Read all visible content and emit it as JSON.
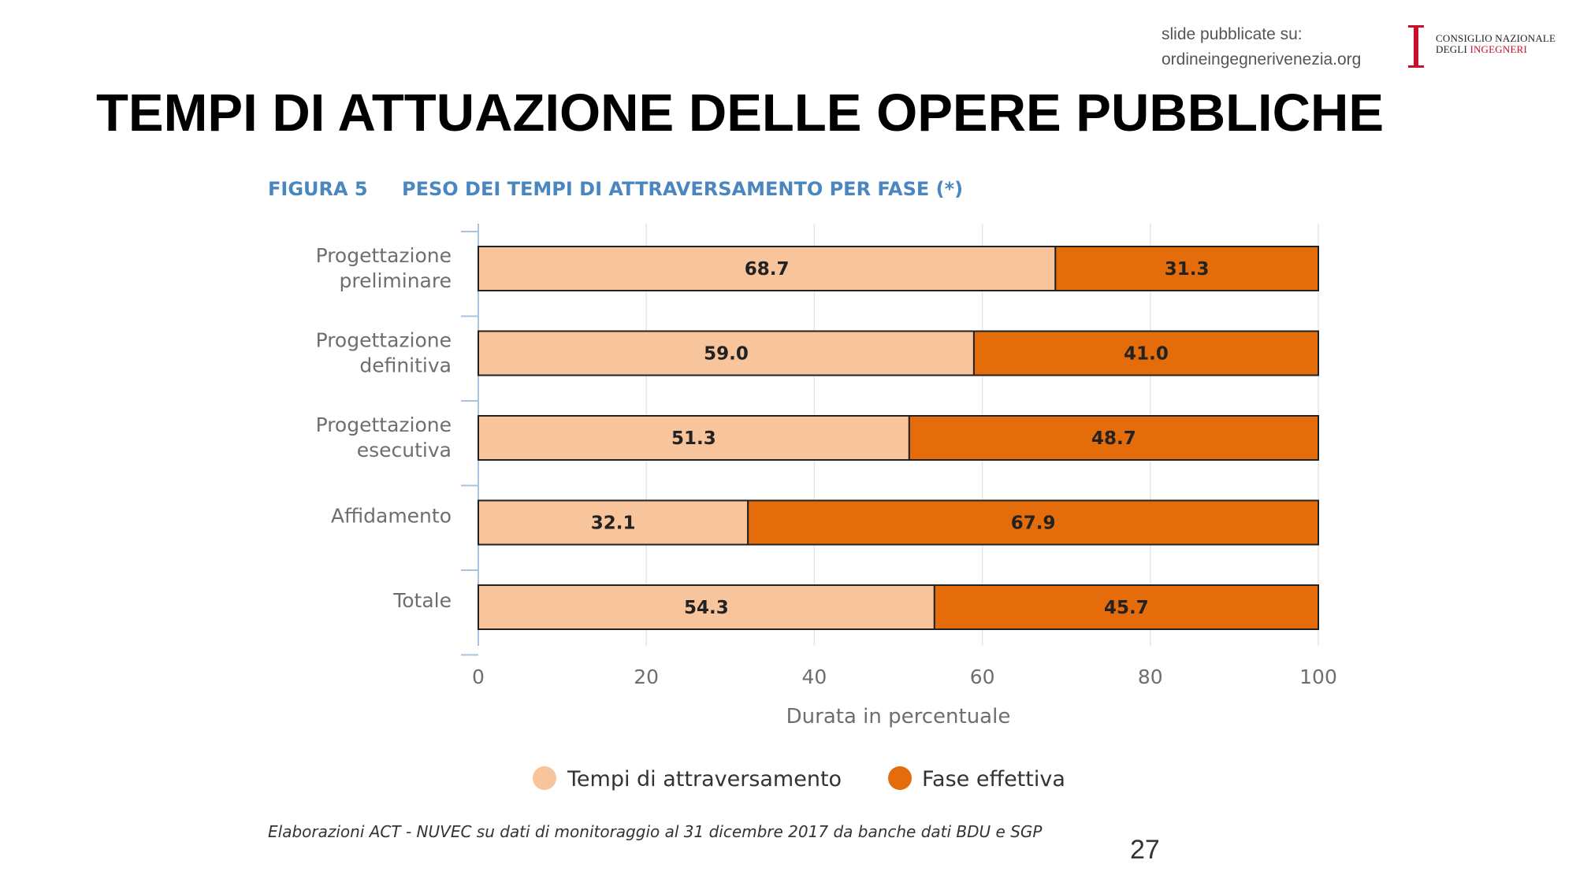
{
  "header": {
    "source_line1": "slide pubblicate su:",
    "source_line2": "ordineingegnerivenezia.org",
    "logo_line1": "CONSIGLIO NAZIONALE",
    "logo_line2a": "DEGLI ",
    "logo_line2b": "INGEGNERI",
    "logo_red": "#c8102e"
  },
  "page_title": "TEMPI DI ATTUAZIONE DELLE OPERE PUBBLICHE",
  "figure": {
    "number": "FIGURA 5",
    "title": "PESO DEI TEMPI DI ATTRAVERSAMENTO PER FASE (*)",
    "title_color": "#4a86c0"
  },
  "chart_data": {
    "type": "bar",
    "orientation": "horizontal",
    "stacked": true,
    "categories": [
      [
        "Progettazione",
        "preliminare"
      ],
      [
        "Progettazione",
        "definitiva"
      ],
      [
        "Progettazione",
        "esecutiva"
      ],
      [
        "Affidamento"
      ],
      [
        "Totale"
      ]
    ],
    "series": [
      {
        "name": "Tempi di attraversamento",
        "color": "#f8c49b",
        "values": [
          68.7,
          59.0,
          51.3,
          32.1,
          54.3
        ]
      },
      {
        "name": "Fase effettiva",
        "color": "#e46c0a",
        "values": [
          31.3,
          41.0,
          48.7,
          67.9,
          45.7
        ]
      }
    ],
    "xlabel": "Durata in percentuale",
    "xlim": [
      0,
      100
    ],
    "xticks": [
      0,
      20,
      40,
      60,
      80,
      100
    ],
    "grid": true,
    "legend": "bottom"
  },
  "footer": {
    "note": "Elaborazioni ACT - NUVEC su dati di monitoraggio al 31 dicembre 2017 da banche dati BDU e SGP",
    "page_number": "27"
  }
}
